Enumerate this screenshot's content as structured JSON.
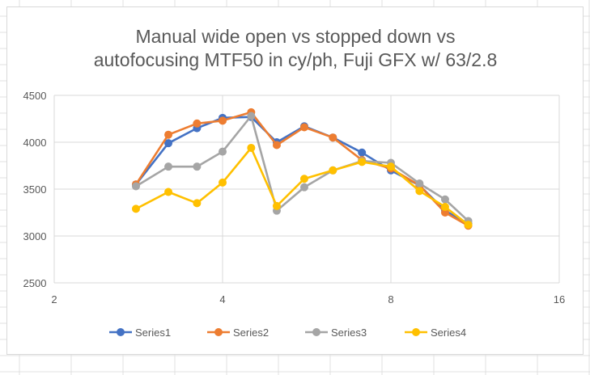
{
  "chart_data": {
    "type": "line",
    "title_lines": [
      "Manual wide open vs stopped down vs",
      "autofocusing MTF50 in cy/ph, Fuji GFX w/ 63/2.8"
    ],
    "xlabel": "",
    "ylabel": "",
    "x_scale": "log2",
    "xlim": [
      2,
      16
    ],
    "ylim": [
      2500,
      4500
    ],
    "x_ticks": [
      2,
      4,
      8,
      16
    ],
    "y_ticks": [
      2500,
      3000,
      3500,
      4000,
      4500
    ],
    "x_tick_labels": [
      "2",
      "4",
      "8",
      "16"
    ],
    "y_tick_labels": [
      "2500",
      "3000",
      "3500",
      "4000",
      "4500"
    ],
    "grid": true,
    "legend_position": "bottom",
    "x": [
      2.8,
      3.2,
      3.6,
      4.0,
      4.5,
      5.0,
      5.6,
      6.3,
      7.1,
      8.0,
      9.0,
      10.0,
      11.0
    ],
    "series": [
      {
        "name": "Series1",
        "color": "#4472c4",
        "values": [
          3550,
          3990,
          4150,
          4260,
          4270,
          4000,
          4170,
          4050,
          3890,
          3700,
          3540,
          3270,
          3130
        ]
      },
      {
        "name": "Series2",
        "color": "#ed7d31",
        "values": [
          3550,
          4080,
          4200,
          4230,
          4320,
          3970,
          4160,
          4050,
          3810,
          3720,
          3540,
          3250,
          3110
        ]
      },
      {
        "name": "Series3",
        "color": "#a5a5a5",
        "values": [
          3530,
          3740,
          3740,
          3900,
          4280,
          3270,
          3520,
          3700,
          3800,
          3780,
          3560,
          3390,
          3160
        ]
      },
      {
        "name": "Series4",
        "color": "#ffc000",
        "values": [
          3290,
          3470,
          3350,
          3570,
          3940,
          3320,
          3610,
          3700,
          3790,
          3740,
          3480,
          3310,
          3120
        ]
      }
    ]
  }
}
